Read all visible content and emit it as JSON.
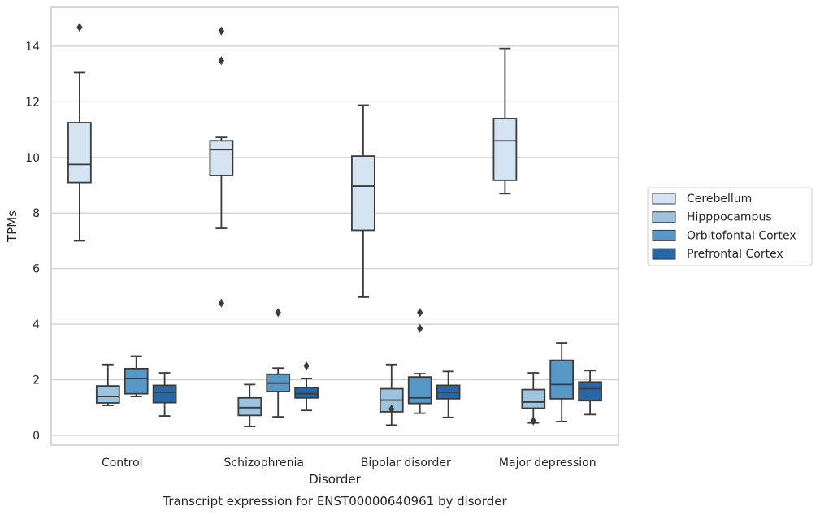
{
  "chart_data": {
    "type": "boxplot",
    "caption": "Transcript expression for ENST00000640961 by disorder",
    "xlabel": "Disorder",
    "ylabel": "TPMs",
    "ylim": [
      -0.35,
      15.4
    ],
    "yticks": [
      0,
      2,
      4,
      6,
      8,
      10,
      12,
      14
    ],
    "grid": "horizontal",
    "legend_position": "right",
    "categories": [
      "Control",
      "Schizophrenia",
      "Bipolar disorder",
      "Major depression"
    ],
    "series": [
      {
        "name": "Cerebellum",
        "color": "#d4e4f3",
        "boxes": [
          {
            "whislo": 7.0,
            "q1": 9.1,
            "med": 9.75,
            "q3": 11.25,
            "whishi": 13.05,
            "fliers": [
              14.68
            ]
          },
          {
            "whislo": 7.45,
            "q1": 9.35,
            "med": 10.28,
            "q3": 10.6,
            "whishi": 10.72,
            "fliers": [
              14.55,
              13.48,
              4.76
            ]
          },
          {
            "whislo": 4.97,
            "q1": 7.38,
            "med": 8.97,
            "q3": 10.05,
            "whishi": 11.88,
            "fliers": []
          },
          {
            "whislo": 8.7,
            "q1": 9.18,
            "med": 10.6,
            "q3": 11.4,
            "whishi": 13.92,
            "fliers": []
          }
        ]
      },
      {
        "name": "Hipppocampus",
        "color": "#9dc3de",
        "boxes": [
          {
            "whislo": 1.08,
            "q1": 1.17,
            "med": 1.4,
            "q3": 1.78,
            "whishi": 2.55,
            "fliers": []
          },
          {
            "whislo": 0.32,
            "q1": 0.72,
            "med": 1.0,
            "q3": 1.35,
            "whishi": 1.83,
            "fliers": []
          },
          {
            "whislo": 0.37,
            "q1": 0.85,
            "med": 1.27,
            "q3": 1.68,
            "whishi": 2.55,
            "fliers": [
              0.95
            ]
          },
          {
            "whislo": 0.45,
            "q1": 0.98,
            "med": 1.2,
            "q3": 1.65,
            "whishi": 2.25,
            "fliers": [
              0.52
            ]
          }
        ]
      },
      {
        "name": "Orbitofontal Cortex",
        "color": "#5898c7",
        "boxes": [
          {
            "whislo": 1.4,
            "q1": 1.5,
            "med": 2.05,
            "q3": 2.4,
            "whishi": 2.85,
            "fliers": []
          },
          {
            "whislo": 0.67,
            "q1": 1.58,
            "med": 1.88,
            "q3": 2.2,
            "whishi": 2.42,
            "fliers": [
              4.42
            ]
          },
          {
            "whislo": 0.8,
            "q1": 1.15,
            "med": 1.35,
            "q3": 2.1,
            "whishi": 2.22,
            "fliers": [
              4.42,
              3.85
            ]
          },
          {
            "whislo": 0.5,
            "q1": 1.32,
            "med": 1.83,
            "q3": 2.7,
            "whishi": 3.33,
            "fliers": []
          }
        ]
      },
      {
        "name": "Prefrontal Cortex",
        "color": "#2966a6",
        "boxes": [
          {
            "whislo": 0.7,
            "q1": 1.18,
            "med": 1.55,
            "q3": 1.8,
            "whishi": 2.25,
            "fliers": []
          },
          {
            "whislo": 0.9,
            "q1": 1.35,
            "med": 1.5,
            "q3": 1.72,
            "whishi": 2.05,
            "fliers": [
              2.5
            ]
          },
          {
            "whislo": 0.65,
            "q1": 1.32,
            "med": 1.55,
            "q3": 1.8,
            "whishi": 2.3,
            "fliers": []
          },
          {
            "whislo": 0.75,
            "q1": 1.25,
            "med": 1.68,
            "q3": 1.92,
            "whishi": 2.33,
            "fliers": []
          }
        ]
      }
    ]
  }
}
